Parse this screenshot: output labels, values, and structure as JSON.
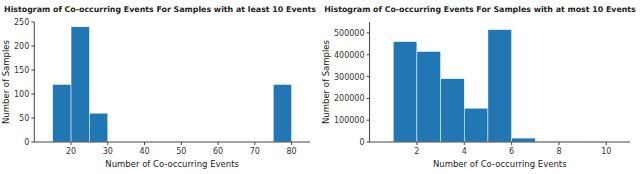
{
  "chart_data": [
    {
      "type": "histogram",
      "title": "Histogram of Co-occurring Events For Samples with at least 10 Events",
      "xlabel": "Number of Co-occurring Events",
      "ylabel": "Number of Samples",
      "bins": [
        15,
        20,
        25,
        30,
        75,
        80
      ],
      "values": [
        120,
        240,
        60,
        0,
        120
      ],
      "color": "#2077b4",
      "xlim": [
        10,
        85
      ],
      "ylim": [
        0,
        250
      ],
      "xticks": [
        20,
        30,
        40,
        50,
        60,
        70,
        80
      ],
      "yticks": [
        0,
        50,
        100,
        150,
        200,
        250
      ]
    },
    {
      "type": "histogram",
      "title": "Histogram of Co-occurring Events For Samples with at most 10 Events",
      "xlabel": "Number of Co-occurring Events",
      "ylabel": "Number of Samples",
      "bins": [
        1,
        2,
        3,
        4,
        5,
        6,
        7,
        8,
        9,
        10
      ],
      "values": [
        460000,
        415000,
        290000,
        155000,
        515000,
        18000,
        2000,
        500,
        1000
      ],
      "color": "#2077b4",
      "xlim": [
        0,
        11
      ],
      "ylim": [
        0,
        550000
      ],
      "xticks": [
        2,
        4,
        6,
        8,
        10
      ],
      "yticks": [
        0,
        100000,
        200000,
        300000,
        400000,
        500000
      ]
    }
  ]
}
